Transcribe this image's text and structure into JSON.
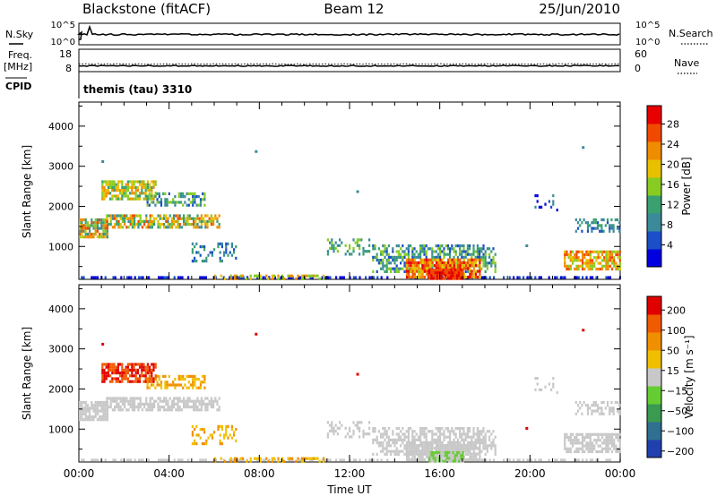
{
  "header": {
    "station": "Blackstone (fitACF)",
    "beam": "Beam 12",
    "date": "25/Jun/2010"
  },
  "noise_panel": {
    "left_label": "N.Sky",
    "right_label": "N.Search",
    "left_ticks": [
      "10^5",
      "10^0"
    ],
    "right_ticks": [
      "10^5",
      "10^0"
    ]
  },
  "freq_panel": {
    "left_label_line1": "Freq.",
    "left_label_line2": "[MHz]",
    "right_label": "Nave",
    "left_ticks": [
      "18",
      "8"
    ],
    "right_ticks": [
      "60",
      "0"
    ]
  },
  "cpid_panel": {
    "label": "CPID",
    "text": "themis (tau) 3310"
  },
  "chart_data": [
    {
      "type": "heatmap",
      "panel": "power",
      "ylabel": "Slant Range [km]",
      "ylim": [
        180,
        4600
      ],
      "yticks": [
        "1000",
        "2000",
        "3000",
        "4000"
      ],
      "xlim_hours": [
        0,
        24
      ],
      "xticks": [
        "00:00",
        "04:00",
        "08:00",
        "12:00",
        "16:00",
        "20:00",
        "00:00"
      ],
      "colorbar_label": "Power [dB]",
      "colorbar_ticks": [
        "4",
        "8",
        "12",
        "16",
        "20",
        "24",
        "28"
      ],
      "colorbar_range": [
        0,
        32
      ],
      "colors": [
        "#0000e0",
        "#1a4fc8",
        "#3a8a9a",
        "#3aa070",
        "#88cc22",
        "#e8c000",
        "#f08c00",
        "#f04a00",
        "#e80000"
      ]
    },
    {
      "type": "heatmap",
      "panel": "velocity",
      "ylabel": "Slant Range [km]",
      "ylim": [
        180,
        4600
      ],
      "yticks": [
        "1000",
        "2000",
        "3000",
        "4000"
      ],
      "xlim_hours": [
        0,
        24
      ],
      "xticks": [
        "00:00",
        "04:00",
        "08:00",
        "12:00",
        "16:00",
        "20:00",
        "00:00"
      ],
      "xlabel": "Time UT",
      "colorbar_label": "Velocity [m s⁻¹]",
      "colorbar_ticks": [
        "200",
        "100",
        "50",
        "15",
        "−15",
        "−50",
        "−100",
        "−200"
      ],
      "colorbar_range": [
        -250,
        250
      ],
      "colors": [
        "#2040b0",
        "#2f6f90",
        "#3a9a50",
        "#66cc33",
        "#c8c8c8",
        "#f0c000",
        "#f09000",
        "#f05a00",
        "#e00000"
      ]
    }
  ]
}
